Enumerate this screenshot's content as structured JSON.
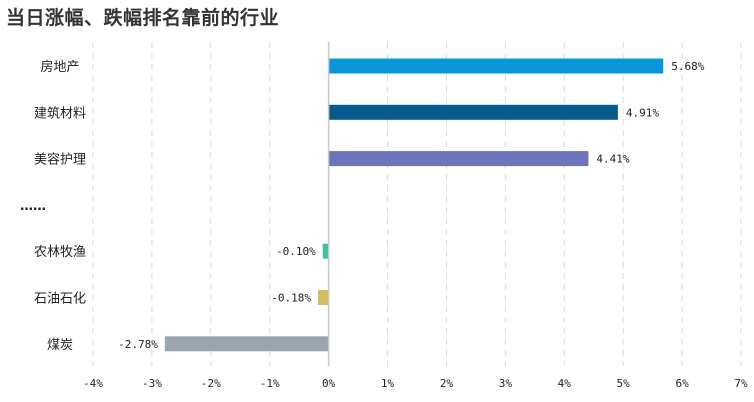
{
  "chart_data": {
    "type": "bar",
    "orientation": "horizontal",
    "title": "当日涨幅、跌幅排名靠前的行业",
    "categories": [
      "房地产",
      "建筑材料",
      "美容护理",
      "……",
      "农林牧渔",
      "石油石化",
      "煤炭"
    ],
    "values": [
      5.68,
      4.91,
      4.41,
      null,
      -0.1,
      -0.18,
      -2.78
    ],
    "value_labels": [
      "5.68%",
      "4.91%",
      "4.41%",
      "",
      "-0.10%",
      "-0.18%",
      "-2.78%"
    ],
    "colors": [
      "#0796d9",
      "#065a8c",
      "#6e74ba",
      null,
      "#3fbfa5",
      "#d3bd5e",
      "#9aa6ad"
    ],
    "xlim": [
      -4,
      7
    ],
    "xticks": [
      -4,
      -3,
      -2,
      -1,
      0,
      1,
      2,
      3,
      4,
      5,
      6,
      7
    ],
    "xtick_labels": [
      "-4%",
      "-3%",
      "-2%",
      "-1%",
      "0%",
      "1%",
      "2%",
      "3%",
      "4%",
      "5%",
      "6%",
      "7%"
    ],
    "grid": "vertical-dashed",
    "xlabel": "",
    "ylabel": ""
  }
}
